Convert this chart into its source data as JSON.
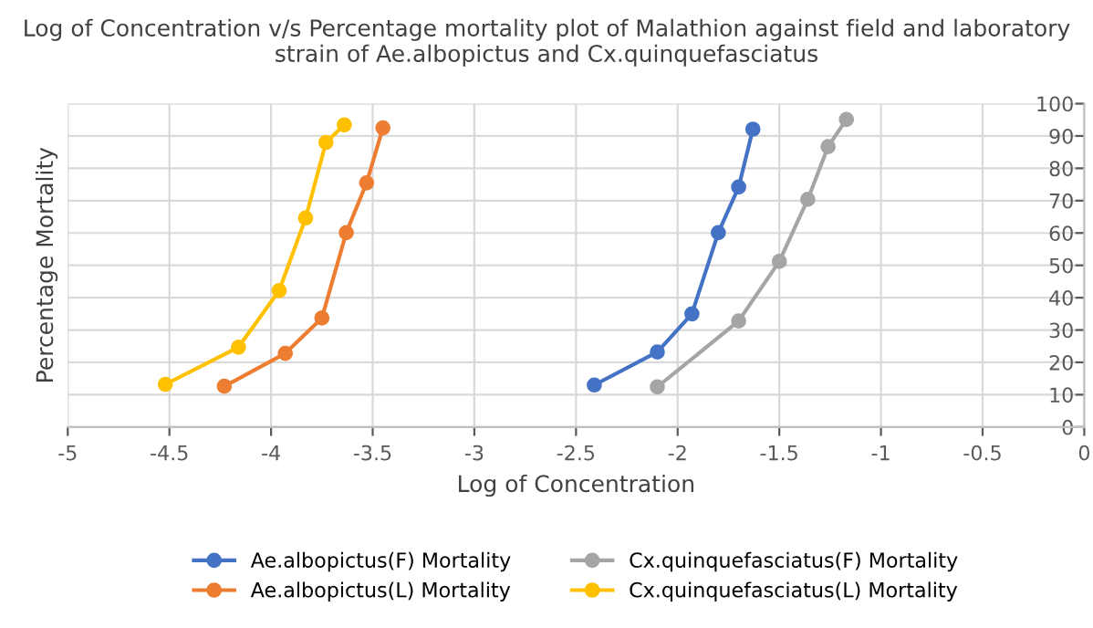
{
  "chart_data": {
    "type": "line",
    "title": "Log of Concentration v/s Percentage mortality plot of Malathion against field and laboratory strain of Ae.albopictus and Cx.quinquefasciatus",
    "xlabel": "Log of Concentration",
    "ylabel": "Percentage Mortality",
    "xlim": [
      -5,
      0
    ],
    "xticks": [
      -5,
      -4.5,
      -4,
      -3.5,
      -3,
      -2.5,
      -2,
      -1.5,
      -1,
      -0.5,
      0
    ],
    "ylim": [
      0,
      100
    ],
    "yticks": [
      0,
      10,
      20,
      30,
      40,
      50,
      60,
      70,
      80,
      90,
      100
    ],
    "grid": true,
    "legend": "bottom",
    "marker": "circle",
    "line_style": "solid",
    "series": [
      {
        "name": "Ae.albopictus(F) Mortality",
        "color": "#4472c4",
        "x": [
          -2.41,
          -2.1,
          -1.93,
          -1.8,
          -1.7,
          -1.63
        ],
        "values": [
          13.0,
          23.2,
          35.0,
          60.1,
          74.2,
          92.1
        ]
      },
      {
        "name": "Ae.albopictus(L) Mortality",
        "color": "#ed7d31",
        "x": [
          -4.23,
          -3.93,
          -3.75,
          -3.63,
          -3.53,
          -3.45
        ],
        "values": [
          12.6,
          22.8,
          33.7,
          60.1,
          75.5,
          92.5
        ]
      },
      {
        "name": "Cx.quinquefasciatus(F) Mortality",
        "color": "#a5a5a5",
        "x": [
          -2.1,
          -1.7,
          -1.5,
          -1.36,
          -1.26,
          -1.17
        ],
        "values": [
          12.4,
          32.8,
          51.2,
          70.4,
          86.7,
          95.1
        ]
      },
      {
        "name": "Cx.quinquefasciatus(L) Mortality",
        "color": "#ffc000",
        "x": [
          -4.52,
          -4.16,
          -3.96,
          -3.83,
          -3.73,
          -3.64
        ],
        "values": [
          13.2,
          24.7,
          42.2,
          64.6,
          88.0,
          93.4
        ]
      }
    ]
  }
}
